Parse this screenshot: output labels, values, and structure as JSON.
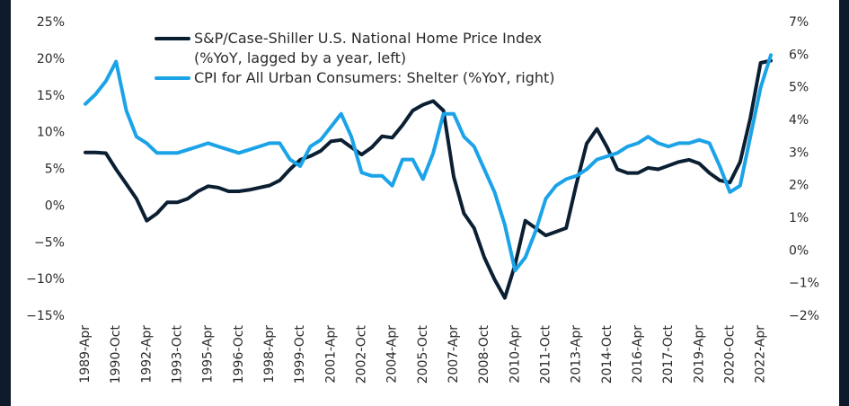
{
  "chart_data": {
    "type": "line",
    "categories": [
      "1989-Apr",
      null,
      null,
      "1990-Oct",
      null,
      null,
      "1992-Apr",
      null,
      null,
      "1993-Oct",
      null,
      null,
      "1995-Apr",
      null,
      null,
      "1996-Oct",
      null,
      null,
      "1998-Apr",
      null,
      null,
      "1999-Oct",
      null,
      null,
      "2001-Apr",
      null,
      null,
      "2002-Oct",
      null,
      null,
      "2004-Apr",
      null,
      null,
      "2005-Oct",
      null,
      null,
      "2007-Apr",
      null,
      null,
      "2008-Oct",
      null,
      null,
      "2010-Apr",
      null,
      null,
      "2011-Oct",
      null,
      null,
      "2013-Apr",
      null,
      null,
      "2014-Oct",
      null,
      null,
      "2016-Apr",
      null,
      null,
      "2017-Oct",
      null,
      null,
      "2019-Apr",
      null,
      null,
      "2020-Oct",
      null,
      null,
      "2022-Apr",
      null
    ],
    "series": [
      {
        "name": "S&P/Case-Shiller U.S. National Home Price Index (%YoY, lagged by a year, left)",
        "color": "#0b1f33",
        "axis": "y",
        "values": [
          7.3,
          7.3,
          7.2,
          5,
          3,
          1,
          -2,
          -1,
          0.5,
          0.5,
          1,
          2,
          2.7,
          2.5,
          2,
          2,
          2.2,
          2.5,
          2.8,
          3.5,
          5,
          6.3,
          6.8,
          7.5,
          8.8,
          9,
          8,
          7,
          8,
          9.5,
          9.3,
          11,
          13,
          13.8,
          14.3,
          13,
          4,
          -1,
          -3,
          -7,
          -10,
          -12.5,
          -8,
          -2,
          -3,
          -4,
          -3.5,
          -3,
          3,
          8.5,
          10.5,
          8,
          5,
          4.5,
          4.5,
          5.2,
          5,
          5.5,
          6,
          6.3,
          5.8,
          4.5,
          3.5,
          3.2,
          6,
          12,
          19.5,
          19.8
        ]
      },
      {
        "name": "CPI for All Urban Consumers: Shelter (%YoY, right)",
        "color": "#1ba3e8",
        "axis": "y2",
        "values": [
          4.5,
          4.8,
          5.2,
          5.8,
          4.3,
          3.5,
          3.3,
          3.0,
          3.0,
          3.0,
          3.1,
          3.2,
          3.3,
          3.2,
          3.1,
          3.0,
          3.1,
          3.2,
          3.3,
          3.3,
          2.8,
          2.6,
          3.2,
          3.4,
          3.8,
          4.2,
          3.5,
          2.4,
          2.3,
          2.3,
          2.0,
          2.8,
          2.8,
          2.2,
          3.0,
          4.2,
          4.2,
          3.5,
          3.2,
          2.5,
          1.8,
          0.8,
          -0.6,
          -0.2,
          0.6,
          1.6,
          2.0,
          2.2,
          2.3,
          2.5,
          2.8,
          2.9,
          3.0,
          3.2,
          3.3,
          3.5,
          3.3,
          3.2,
          3.3,
          3.3,
          3.4,
          3.3,
          2.6,
          1.8,
          2.0,
          3.5,
          5.0,
          6.0
        ]
      }
    ],
    "ylim": [
      -15,
      25
    ],
    "yticks": [
      {
        "value": -15,
        "label": "−15%"
      },
      {
        "value": -10,
        "label": "−10%"
      },
      {
        "value": -5,
        "label": "−5%"
      },
      {
        "value": 0,
        "label": "0%"
      },
      {
        "value": 5,
        "label": "5%"
      },
      {
        "value": 10,
        "label": "10%"
      },
      {
        "value": 15,
        "label": "15%"
      },
      {
        "value": 20,
        "label": "20%"
      },
      {
        "value": 25,
        "label": "25%"
      }
    ],
    "y2lim": [
      -2,
      7
    ],
    "y2ticks": [
      {
        "value": -2,
        "label": "−2%"
      },
      {
        "value": -1,
        "label": "−1%"
      },
      {
        "value": 0,
        "label": "0%"
      },
      {
        "value": 1,
        "label": "1%"
      },
      {
        "value": 2,
        "label": "2%"
      },
      {
        "value": 3,
        "label": "3%"
      },
      {
        "value": 4,
        "label": "4%"
      },
      {
        "value": 5,
        "label": "5%"
      },
      {
        "value": 6,
        "label": "6%"
      },
      {
        "value": 7,
        "label": "7%"
      }
    ],
    "grid": false
  }
}
